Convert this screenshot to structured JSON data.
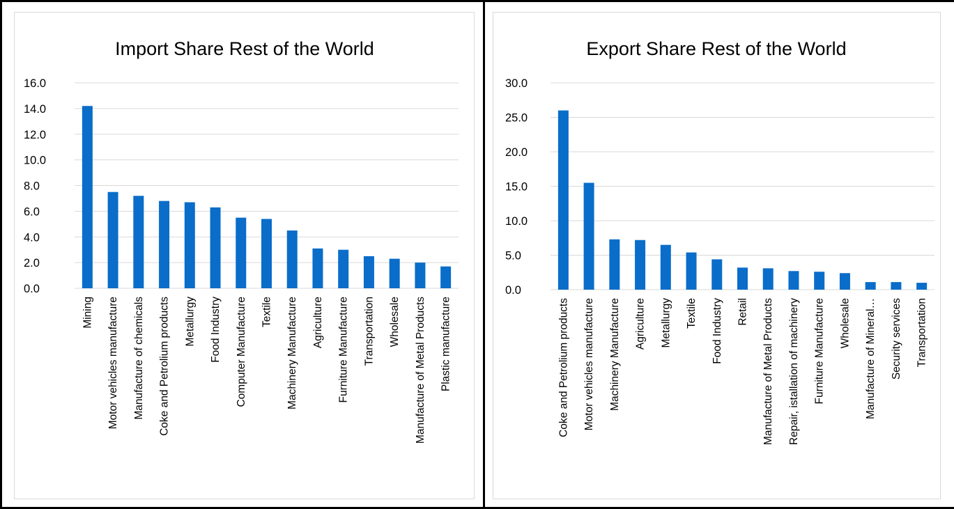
{
  "colors": {
    "bar": "#0A6DC9",
    "grid": "#d9d9d9",
    "text": "#000000"
  },
  "chart_data": [
    {
      "type": "bar",
      "title": "Import Share Rest of the World",
      "ylim": [
        0,
        16
      ],
      "yticks": [
        0,
        2,
        4,
        6,
        8,
        10,
        12,
        14,
        16
      ],
      "ytick_labels": [
        "0.0",
        "2.0",
        "4.0",
        "6.0",
        "8.0",
        "10.0",
        "12.0",
        "14.0",
        "16.0"
      ],
      "grid": true,
      "categories": [
        "Mining",
        "Motor vehicles manufacture",
        "Manufacture of chemicals",
        "Coke and Petrolium products",
        "Metallurgy",
        "Food Industry",
        "Computer Manufacture",
        "Textile",
        "Machinery Manufacture",
        "Agriculture",
        "Furniture Manufacture",
        "Transportation",
        "Wholesale",
        "Manufacture of Metal Products",
        "Plastic manufacture"
      ],
      "values": [
        14.2,
        7.5,
        7.2,
        6.8,
        6.7,
        6.3,
        5.5,
        5.4,
        4.5,
        3.1,
        3.0,
        2.5,
        2.3,
        2.0,
        1.7
      ]
    },
    {
      "type": "bar",
      "title": "Export Share Rest of the World",
      "ylim": [
        0,
        30
      ],
      "yticks": [
        0,
        5,
        10,
        15,
        20,
        25,
        30
      ],
      "ytick_labels": [
        "0.0",
        "5.0",
        "10.0",
        "15.0",
        "20.0",
        "25.0",
        "30.0"
      ],
      "grid": true,
      "categories": [
        "Coke and Petrolium products",
        "Motor vehicles manufacture",
        "Machinery Manufacture",
        "Agriculture",
        "Metallurgy",
        "Textile",
        "Food Industry",
        "Retail",
        "Manufacture of Metal Products",
        "Repair, istallation of machinery",
        "Furniture Manufacture",
        "Wholesale",
        "Manufacture of Mineral…",
        "Security services",
        "Transportation"
      ],
      "values": [
        26.0,
        15.5,
        7.3,
        7.2,
        6.5,
        5.4,
        4.4,
        3.2,
        3.1,
        2.7,
        2.6,
        2.4,
        1.1,
        1.1,
        1.0
      ]
    }
  ]
}
